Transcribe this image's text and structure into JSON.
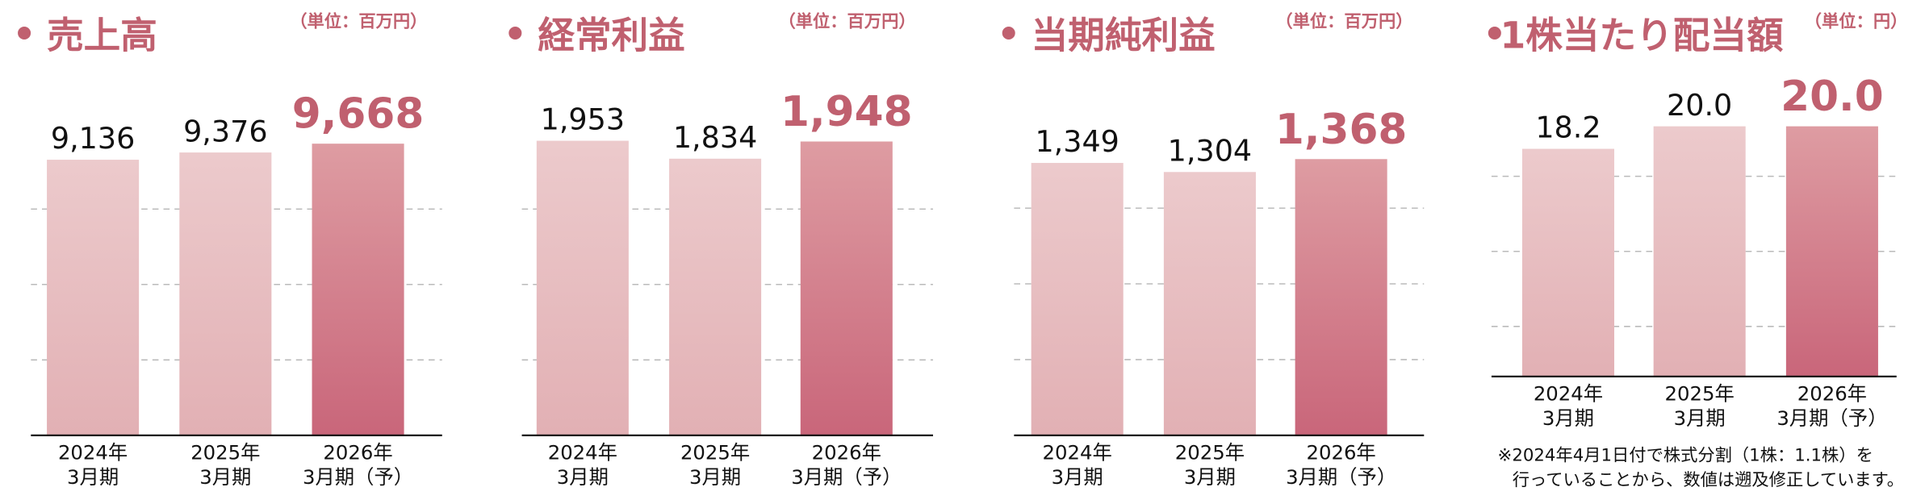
{
  "chart_data": [
    {
      "type": "bar",
      "title": "売上高",
      "unit": "（単位：百万円）",
      "categories": [
        [
          "2024年",
          "3月期"
        ],
        [
          "2025年",
          "3月期"
        ],
        [
          "2026年",
          "3月期（予）"
        ]
      ],
      "values": [
        9136,
        9376,
        9668
      ],
      "value_labels": [
        "9,136",
        "9,376",
        "9,668"
      ],
      "colors": [
        "#e8c3c5",
        "#e8c3c5",
        "#d07883"
      ],
      "ylim": [
        0,
        10000
      ],
      "yticks": [
        2500,
        5000,
        7500
      ],
      "grid": true
    },
    {
      "type": "bar",
      "title": "経常利益",
      "unit": "（単位：百万円）",
      "categories": [
        [
          "2024年",
          "3月期"
        ],
        [
          "2025年",
          "3月期"
        ],
        [
          "2026年",
          "3月期（予）"
        ]
      ],
      "values": [
        1953,
        1834,
        1948
      ],
      "value_labels": [
        "1,953",
        "1,834",
        "1,948"
      ],
      "colors": [
        "#e8c3c5",
        "#e8c3c5",
        "#d07883"
      ],
      "ylim": [
        0,
        2000
      ],
      "yticks": [
        500,
        1000,
        1500
      ],
      "grid": true
    },
    {
      "type": "bar",
      "title": "当期純利益",
      "unit": "（単位：百万円）",
      "categories": [
        [
          "2024年",
          "3月期"
        ],
        [
          "2025年",
          "3月期"
        ],
        [
          "2026年",
          "3月期（予）"
        ]
      ],
      "values": [
        1349,
        1304,
        1368
      ],
      "value_labels": [
        "1,349",
        "1,304",
        "1,368"
      ],
      "colors": [
        "#e8c3c5",
        "#e8c3c5",
        "#d07883"
      ],
      "ylim": [
        0,
        1500
      ],
      "yticks": [
        375,
        750,
        1125
      ],
      "grid": true
    },
    {
      "type": "bar",
      "title": "1株当たり配当額",
      "unit": "（単位：円）",
      "categories": [
        [
          "2024年",
          "3月期"
        ],
        [
          "2025年",
          "3月期"
        ],
        [
          "2026年",
          "3月期（予）"
        ]
      ],
      "values": [
        18.2,
        20,
        20
      ],
      "value_labels": [
        "18.2",
        "20.0",
        "20.0"
      ],
      "colors": [
        "#e8c3c5",
        "#e8c3c5",
        "#d07883"
      ],
      "ylim": [
        0,
        20
      ],
      "yticks": [
        4,
        10,
        16
      ],
      "grid": true,
      "note": [
        "※2024年4月1日付で株式分割（1株：1.1株）を",
        "行っていることから、数値は遡及修正しています。"
      ]
    }
  ]
}
